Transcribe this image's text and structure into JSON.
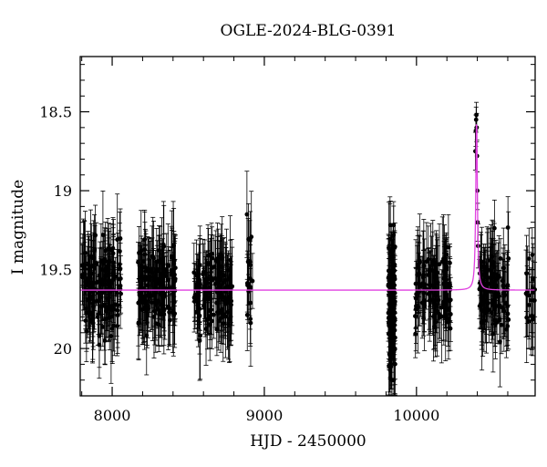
{
  "chart_data": {
    "type": "scatter",
    "title": "OGLE-2024-BLG-0391",
    "xlabel": "HJD - 2450000",
    "ylabel": "I magnitude",
    "xlim": [
      7790,
      10780
    ],
    "ylim": [
      20.3,
      18.15
    ],
    "y_inverted": true,
    "x_ticks": [
      8000,
      9000,
      10000
    ],
    "y_ticks": [
      18.5,
      19,
      19.5,
      20
    ],
    "x_tick_labels": [
      "8000",
      "9000",
      "10000"
    ],
    "y_tick_labels": [
      "18.5",
      "19",
      "19.5",
      "20"
    ],
    "baseline_magnitude": 19.63,
    "colors": {
      "points": "#000000",
      "model": "#e040e0"
    },
    "model": {
      "type": "microlensing-peak",
      "baseline": 19.63,
      "peak_hjd": 10395,
      "peak_magnitude": 18.52,
      "description_visible": false
    },
    "observing_seasons": [
      {
        "start": 7800,
        "end": 8060,
        "n": 150,
        "mean": 19.62,
        "sd": 0.14
      },
      {
        "start": 8170,
        "end": 8420,
        "n": 150,
        "mean": 19.6,
        "sd": 0.12
      },
      {
        "start": 8530,
        "end": 8790,
        "n": 140,
        "mean": 19.63,
        "sd": 0.12
      },
      {
        "start": 8885,
        "end": 8925,
        "n": 18,
        "mean": 19.55,
        "sd": 0.2
      },
      {
        "start": 9815,
        "end": 9860,
        "n": 130,
        "mean": 19.68,
        "sd": 0.22
      },
      {
        "start": 9990,
        "end": 10230,
        "n": 120,
        "mean": 19.63,
        "sd": 0.13
      },
      {
        "start": 10410,
        "end": 10610,
        "n": 110,
        "mean": 19.65,
        "sd": 0.15
      },
      {
        "start": 10720,
        "end": 10780,
        "n": 20,
        "mean": 19.7,
        "sd": 0.12
      }
    ],
    "peak_points": [
      {
        "x": 10387,
        "y": 18.75,
        "err": 0.12
      },
      {
        "x": 10390,
        "y": 18.62,
        "err": 0.1
      },
      {
        "x": 10392,
        "y": 18.55,
        "err": 0.08
      },
      {
        "x": 10394,
        "y": 18.52,
        "err": 0.08
      },
      {
        "x": 10396,
        "y": 18.6,
        "err": 0.09
      },
      {
        "x": 10398,
        "y": 18.78,
        "err": 0.1
      },
      {
        "x": 10400,
        "y": 19.0,
        "err": 0.12
      },
      {
        "x": 10402,
        "y": 19.2,
        "err": 0.12
      },
      {
        "x": 10405,
        "y": 19.35,
        "err": 0.14
      }
    ]
  }
}
